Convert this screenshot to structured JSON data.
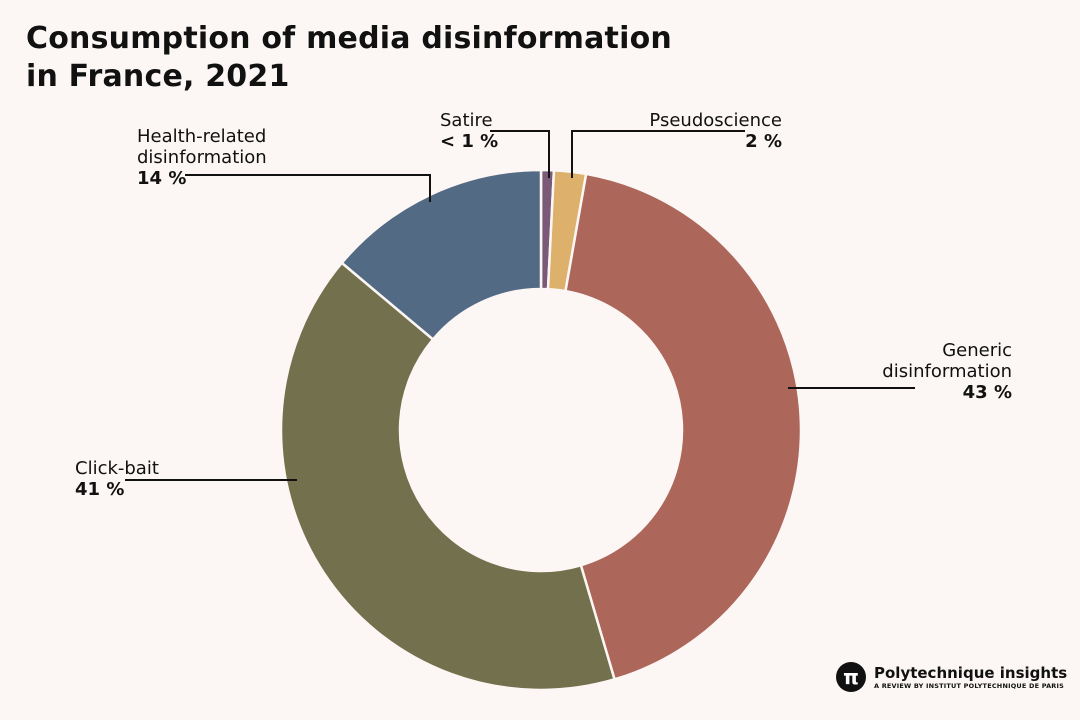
{
  "chart_data": {
    "type": "pie",
    "donut": true,
    "title_line1": "Consumption of media disinformation",
    "title_line2": "in France, 2021",
    "slices": [
      {
        "name": "Satire",
        "display": "< 1 %",
        "value": 0.8,
        "color": "#7a5a78"
      },
      {
        "name": "Pseudoscience",
        "display": "2 %",
        "value": 2,
        "color": "#ddb06c"
      },
      {
        "name": "Generic disinformation",
        "name_line1": "Generic",
        "name_line2": "disinformation",
        "display": "43 %",
        "value": 43,
        "color": "#ad665a"
      },
      {
        "name": "Click-bait",
        "display": "41 %",
        "value": 41,
        "color": "#73704d"
      },
      {
        "name": "Health-related disinformation",
        "name_line1": "Health-related",
        "name_line2": "disinformation",
        "display": "14 %",
        "value": 14,
        "color": "#536a85"
      }
    ]
  },
  "branding": {
    "logo_glyph": "π",
    "name": "Polytechnique insights",
    "tagline": "A REVIEW BY INSTITUT POLYTECHNIQUE DE PARIS"
  }
}
